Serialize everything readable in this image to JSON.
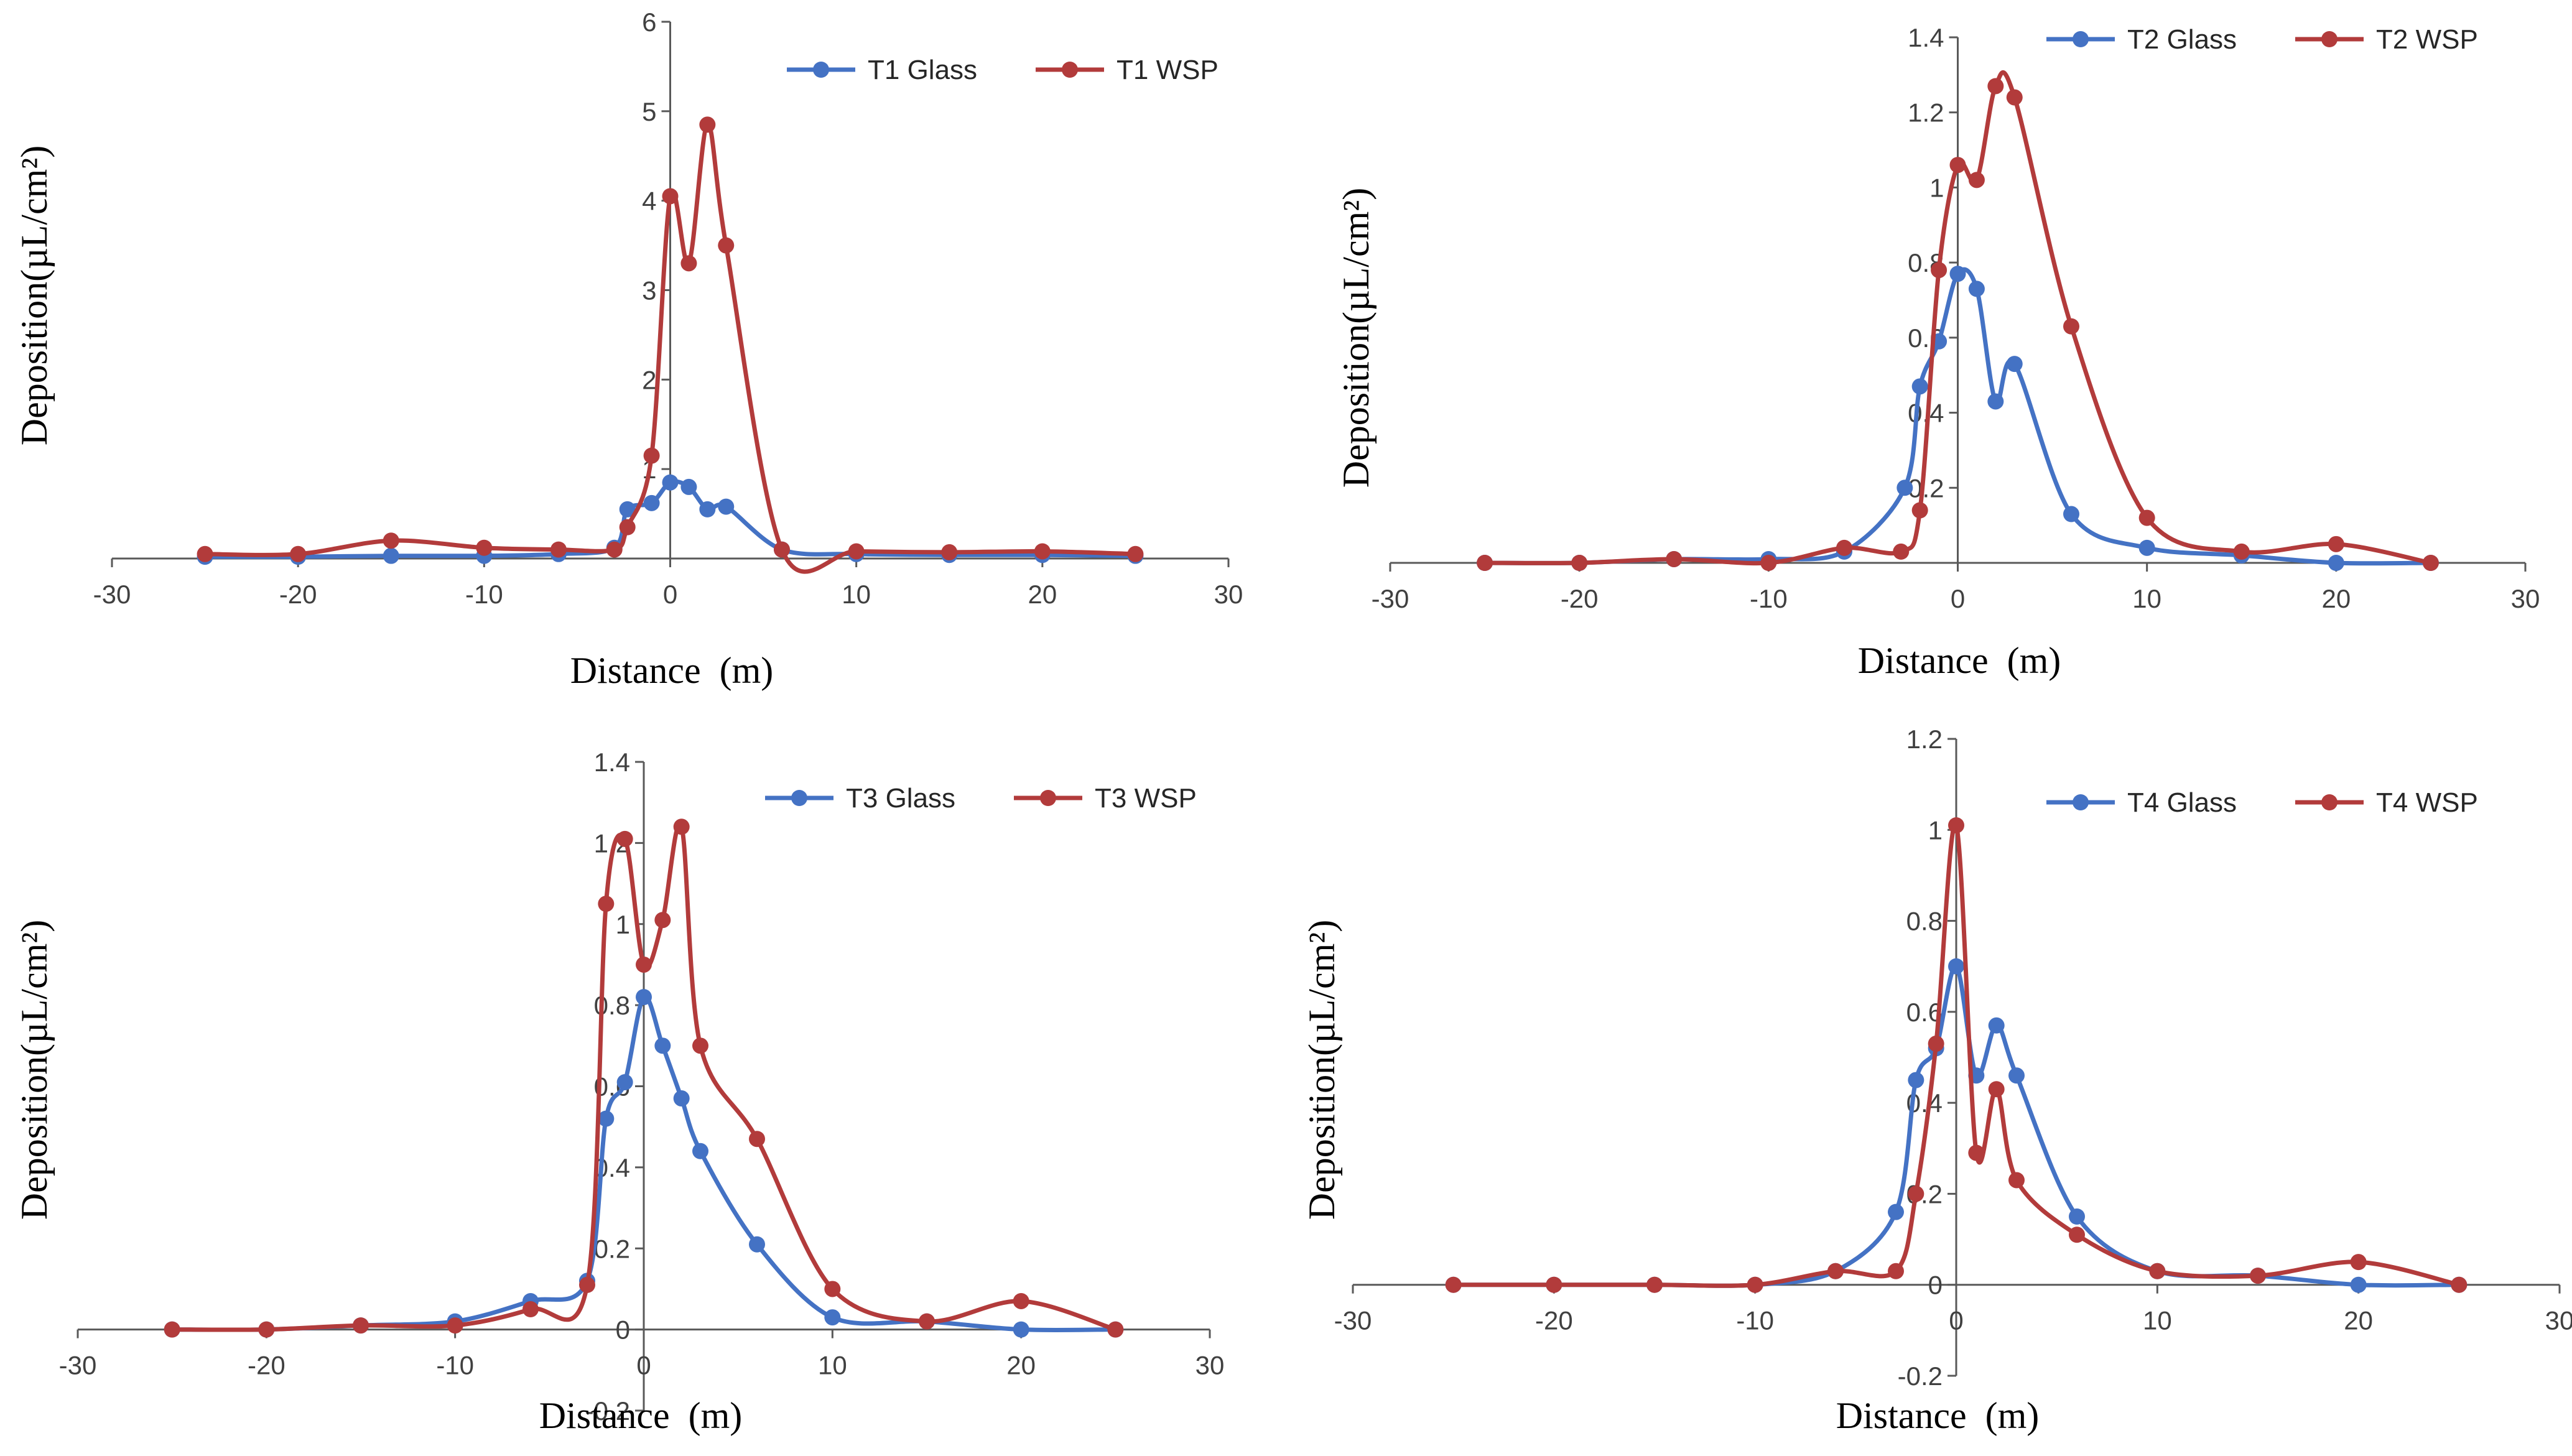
{
  "colors": {
    "glass": "#4472C4",
    "wsp": "#B23B3B",
    "axis": "#595959"
  },
  "chart_data": [
    {
      "type": "line",
      "xlabel": "Distance  (m)",
      "ylabel": "Deposition(µL/cm²)",
      "xlim": [
        -30,
        30
      ],
      "ylim": [
        0,
        6
      ],
      "xticks": [
        "-30",
        "-20",
        "-10",
        "0",
        "10",
        "20",
        "30"
      ],
      "yticks": [
        "1",
        "2",
        "3",
        "4",
        "5",
        "6"
      ],
      "legend": [
        "T1 Glass",
        "T1 WSP"
      ],
      "series": [
        {
          "name": "T1 Glass",
          "x": [
            -25,
            -20,
            -15,
            -10,
            -6,
            -3,
            -2.3,
            -1,
            0,
            1,
            2,
            3,
            6,
            10,
            15,
            20,
            25
          ],
          "y": [
            0.02,
            0.02,
            0.03,
            0.03,
            0.05,
            0.12,
            0.55,
            0.62,
            0.85,
            0.8,
            0.55,
            0.58,
            0.1,
            0.05,
            0.04,
            0.04,
            0.03
          ]
        },
        {
          "name": "T1 WSP",
          "x": [
            -25,
            -20,
            -15,
            -10,
            -6,
            -3,
            -2.3,
            -1,
            0,
            1,
            2,
            3,
            6,
            10,
            15,
            20,
            25
          ],
          "y": [
            0.05,
            0.05,
            0.2,
            0.12,
            0.1,
            0.1,
            0.35,
            1.15,
            4.05,
            3.3,
            4.85,
            3.5,
            0.1,
            0.08,
            0.07,
            0.08,
            0.05
          ]
        }
      ]
    },
    {
      "type": "line",
      "xlabel": "Distance  (m)",
      "ylabel": "Deposition(µL/cm²)",
      "xlim": [
        -30,
        30
      ],
      "ylim": [
        0,
        1.4
      ],
      "xticks": [
        "-30",
        "-20",
        "-10",
        "0",
        "10",
        "20",
        "30"
      ],
      "yticks": [
        "0.2",
        "0.4",
        "0.6",
        "0.8",
        "1",
        "1.2",
        "1.4"
      ],
      "legend": [
        "T2 Glass",
        "T2 WSP"
      ],
      "series": [
        {
          "name": "T2 Glass",
          "x": [
            -25,
            -20,
            -15,
            -10,
            -6,
            -2.8,
            -2,
            -1,
            0,
            1,
            2,
            3,
            6,
            10,
            15,
            20,
            25
          ],
          "y": [
            0.0,
            0.0,
            0.01,
            0.01,
            0.03,
            0.2,
            0.47,
            0.59,
            0.77,
            0.73,
            0.43,
            0.53,
            0.13,
            0.04,
            0.02,
            0.0,
            0.0
          ]
        },
        {
          "name": "T2 WSP",
          "x": [
            -25,
            -20,
            -15,
            -10,
            -6,
            -3,
            -2,
            -1,
            0,
            1,
            2,
            3,
            6,
            10,
            15,
            20,
            25
          ],
          "y": [
            0.0,
            0.0,
            0.01,
            0.0,
            0.04,
            0.03,
            0.14,
            0.78,
            1.06,
            1.02,
            1.27,
            1.24,
            0.63,
            0.12,
            0.03,
            0.05,
            0.0
          ]
        }
      ]
    },
    {
      "type": "line",
      "xlabel": "Distance  (m)",
      "ylabel": "Deposition(µL/cm²)",
      "xlim": [
        -30,
        30
      ],
      "ylim": [
        -0.2,
        1.4
      ],
      "xticks": [
        "-30",
        "-20",
        "-10",
        "0",
        "10",
        "20",
        "30"
      ],
      "yticks": [
        "-0.2",
        "0",
        "0.2",
        "0.4",
        "0.6",
        "0.8",
        "1",
        "1.2",
        "1.4"
      ],
      "legend": [
        "T3 Glass",
        "T3 WSP"
      ],
      "series": [
        {
          "name": "T3 Glass",
          "x": [
            -25,
            -20,
            -15,
            -10,
            -6,
            -3,
            -2,
            -1,
            0,
            1,
            2,
            3,
            6,
            10,
            15,
            20,
            25
          ],
          "y": [
            0.0,
            0.0,
            0.01,
            0.02,
            0.07,
            0.12,
            0.52,
            0.61,
            0.82,
            0.7,
            0.57,
            0.44,
            0.21,
            0.03,
            0.02,
            0.0,
            0.0
          ]
        },
        {
          "name": "T3 WSP",
          "x": [
            -25,
            -20,
            -15,
            -10,
            -6,
            -3,
            -2,
            -1,
            0,
            1,
            2,
            3,
            6,
            10,
            15,
            20,
            25
          ],
          "y": [
            0.0,
            0.0,
            0.01,
            0.01,
            0.05,
            0.11,
            1.05,
            1.21,
            0.9,
            1.01,
            1.24,
            0.7,
            0.47,
            0.1,
            0.02,
            0.07,
            0.0
          ]
        }
      ]
    },
    {
      "type": "line",
      "xlabel": "Distance  (m)",
      "ylabel": "Deposition(µL/cm²)",
      "xlim": [
        -30,
        30
      ],
      "ylim": [
        -0.2,
        1.2
      ],
      "xticks": [
        "-30",
        "-20",
        "-10",
        "0",
        "10",
        "20",
        "30"
      ],
      "yticks": [
        "-0.2",
        "0",
        "0.2",
        "0.4",
        "0.6",
        "0.8",
        "1",
        "1.2"
      ],
      "legend": [
        "T4 Glass",
        "T4 WSP"
      ],
      "series": [
        {
          "name": "T4 Glass",
          "x": [
            -25,
            -20,
            -15,
            -10,
            -6,
            -3,
            -2,
            -1,
            0,
            1,
            2,
            3,
            6,
            10,
            15,
            20,
            25
          ],
          "y": [
            0.0,
            0.0,
            0.0,
            0.0,
            0.03,
            0.16,
            0.45,
            0.52,
            0.7,
            0.46,
            0.57,
            0.46,
            0.15,
            0.03,
            0.02,
            0.0,
            0.0
          ]
        },
        {
          "name": "T4 WSP",
          "x": [
            -25,
            -20,
            -15,
            -10,
            -6,
            -3,
            -2,
            -1,
            0,
            1,
            2,
            3,
            6,
            10,
            15,
            20,
            25
          ],
          "y": [
            0.0,
            0.0,
            0.0,
            0.0,
            0.03,
            0.03,
            0.2,
            0.53,
            1.01,
            0.29,
            0.43,
            0.23,
            0.11,
            0.03,
            0.02,
            0.05,
            0.0
          ]
        }
      ]
    }
  ]
}
